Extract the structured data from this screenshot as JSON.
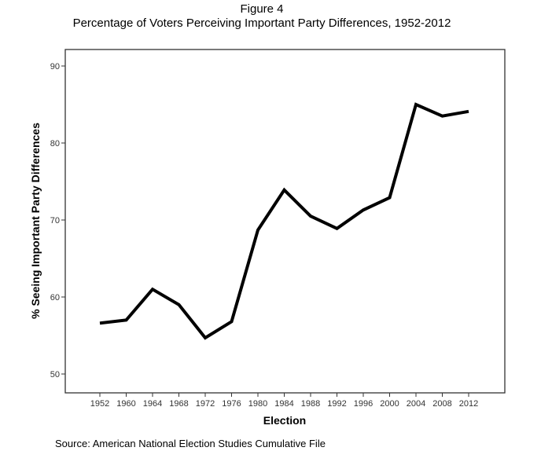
{
  "chart_data": {
    "type": "line",
    "title": "Figure 4",
    "subtitle": "Percentage of Voters Perceiving Important Party Differences, 1952-2012",
    "xlabel": "Election",
    "ylabel": "% Seeing Important Party Differences",
    "categories": [
      "1952",
      "1960",
      "1964",
      "1968",
      "1972",
      "1976",
      "1980",
      "1984",
      "1988",
      "1992",
      "1996",
      "2000",
      "2004",
      "2008",
      "2012"
    ],
    "values": [
      56.6,
      57.0,
      61.0,
      59.0,
      54.7,
      56.8,
      68.7,
      73.9,
      70.5,
      68.9,
      71.3,
      72.9,
      85.0,
      83.5,
      84.1
    ],
    "yticks": [
      "50",
      "60",
      "70",
      "80",
      "90"
    ],
    "ylim": [
      47.9,
      92.2
    ],
    "grid": false,
    "line_color": "#000000",
    "source": "Source: American National Election Studies Cumulative File"
  }
}
